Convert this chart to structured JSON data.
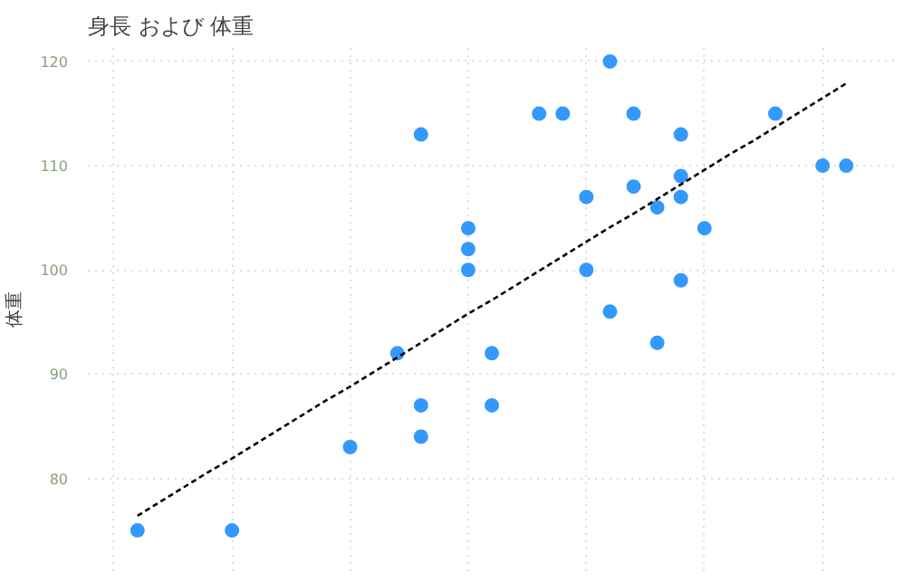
{
  "chart_data": {
    "type": "scatter",
    "title": "身長 および 体重",
    "ylabel": "体重",
    "categories": [
      null,
      null,
      null,
      null,
      null,
      null,
      null,
      null,
      null,
      null,
      null,
      null,
      null,
      null,
      null,
      null,
      null,
      null,
      null,
      null,
      null,
      null,
      null,
      null,
      null,
      null,
      null,
      null,
      null,
      null,
      null,
      null
    ],
    "ylim": [
      71.1,
      121.3
    ],
    "yticks": [
      80,
      90,
      100,
      110,
      120
    ],
    "tick_labels": "y",
    "grid": true,
    "marker": "circle",
    "series": [
      {
        "color": "#3399ff",
        "values": [
          null,
          75,
          null,
          null,
          null,
          75,
          null,
          null,
          null,
          null,
          83,
          null,
          92,
          113,
          null,
          104,
          92,
          null,
          115,
          115,
          107,
          120,
          115,
          106,
          113,
          104,
          null,
          null,
          115,
          null,
          110,
          110
        ]
      },
      {
        "color": "#3399ff",
        "values": [
          null,
          null,
          null,
          null,
          null,
          null,
          null,
          null,
          null,
          null,
          null,
          null,
          null,
          87,
          null,
          102,
          87,
          null,
          null,
          null,
          100,
          96,
          108,
          93,
          109,
          null,
          null,
          null,
          null,
          null,
          null,
          null
        ]
      },
      {
        "color": "#3399ff",
        "values": [
          null,
          null,
          null,
          null,
          null,
          null,
          null,
          null,
          null,
          null,
          null,
          null,
          null,
          84,
          null,
          100,
          null,
          null,
          null,
          null,
          null,
          null,
          null,
          null,
          107,
          null,
          null,
          null,
          null,
          null,
          null,
          null
        ]
      },
      {
        "color": "#3399ff",
        "values": [
          null,
          null,
          null,
          null,
          null,
          null,
          null,
          null,
          null,
          null,
          null,
          null,
          null,
          null,
          null,
          null,
          null,
          null,
          null,
          null,
          null,
          null,
          null,
          null,
          99,
          null,
          null,
          null,
          null,
          null,
          null,
          null
        ]
      },
      {
        "type": "line",
        "color": "#000000",
        "line_style": "dashed",
        "marker": "none",
        "values": [
          null,
          76.4,
          77.8,
          79.2,
          80.6,
          81.9,
          83.3,
          84.7,
          86.1,
          87.5,
          88.8,
          90.2,
          91.6,
          93.0,
          94.4,
          95.8,
          97.1,
          98.5,
          99.9,
          101.3,
          102.7,
          104.1,
          105.4,
          106.8,
          108.2,
          109.6,
          111.0,
          112.3,
          113.7,
          115.1,
          116.5,
          117.9
        ]
      }
    ]
  }
}
